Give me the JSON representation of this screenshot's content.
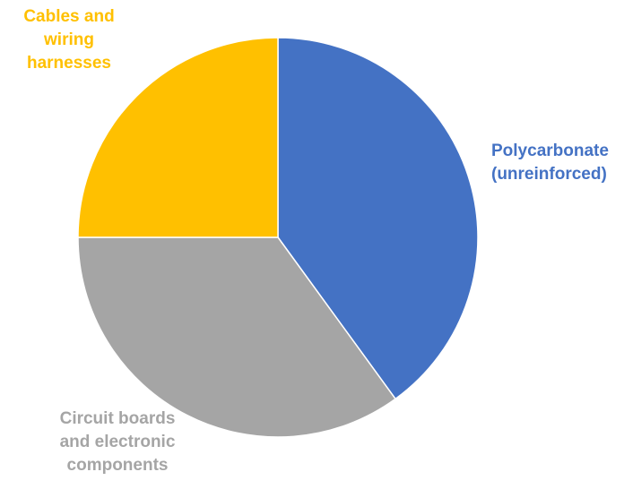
{
  "chart_data": {
    "type": "pie",
    "title": "",
    "slices": [
      {
        "label": "Polycarbonate (unreinforced)",
        "label_lines": [
          "Polycarbonate",
          "(unreinforced)"
        ],
        "value": 40,
        "color": "#4472C4"
      },
      {
        "label": "Circuit boards and electronic components",
        "label_lines": [
          "Circuit boards",
          "and electronic",
          "components"
        ],
        "value": 35,
        "color": "#A5A5A5"
      },
      {
        "label": "Cables and wiring harnesses",
        "label_lines": [
          "Cables and",
          "wiring",
          "harnesses"
        ],
        "value": 25,
        "color": "#FFC000"
      }
    ],
    "start_angle_deg": 0,
    "direction": "clockwise",
    "legend": "none",
    "data_labels": "category names, outside, colored by slice"
  }
}
